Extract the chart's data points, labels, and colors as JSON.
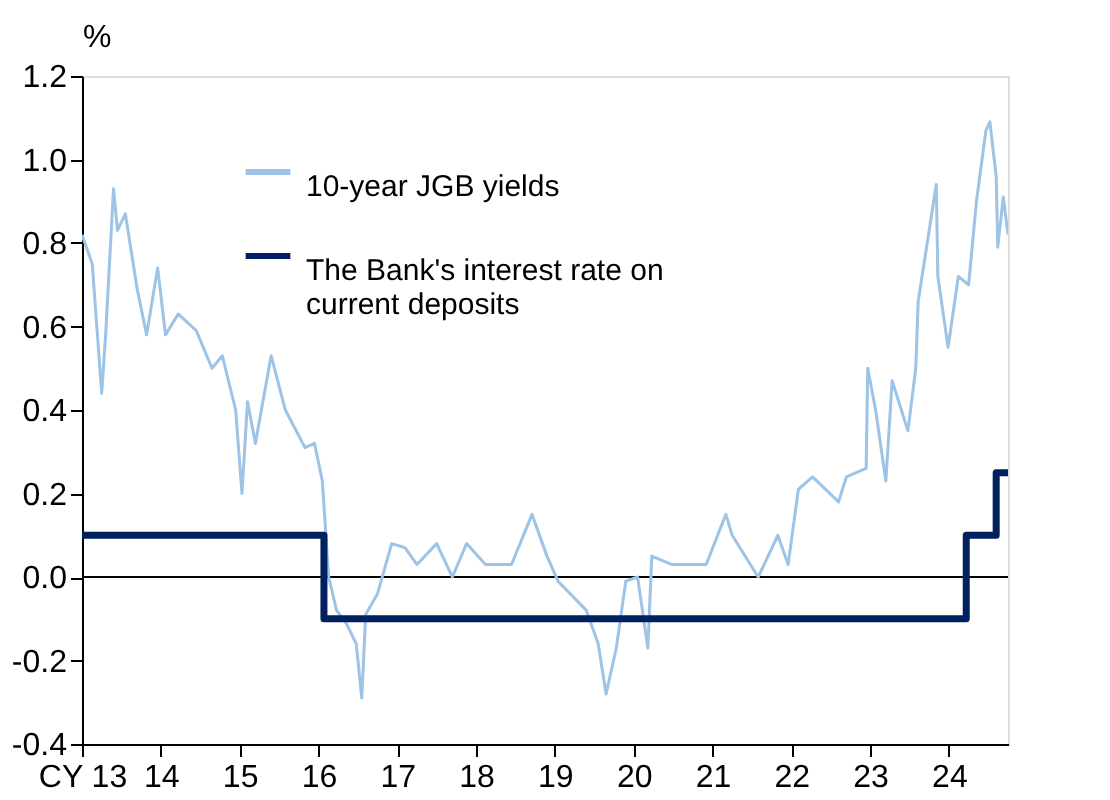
{
  "chart_data": {
    "type": "line",
    "ylabel": "%",
    "xlim": [
      2013,
      2024.75
    ],
    "ylim": [
      -0.4,
      1.2
    ],
    "xticks": [
      {
        "value": 2013,
        "label": "CY 13"
      },
      {
        "value": 2014,
        "label": "14"
      },
      {
        "value": 2015,
        "label": "15"
      },
      {
        "value": 2016,
        "label": "16"
      },
      {
        "value": 2017,
        "label": "17"
      },
      {
        "value": 2018,
        "label": "18"
      },
      {
        "value": 2019,
        "label": "19"
      },
      {
        "value": 2020,
        "label": "20"
      },
      {
        "value": 2021,
        "label": "21"
      },
      {
        "value": 2022,
        "label": "22"
      },
      {
        "value": 2023,
        "label": "23"
      },
      {
        "value": 2024,
        "label": "24"
      }
    ],
    "yticks": [
      {
        "value": -0.4,
        "label": "-0.4"
      },
      {
        "value": -0.2,
        "label": "-0.2"
      },
      {
        "value": 0,
        "label": "0.0"
      },
      {
        "value": 0.2,
        "label": "0.2"
      },
      {
        "value": 0.4,
        "label": "0.4"
      },
      {
        "value": 0.6,
        "label": "0.6"
      },
      {
        "value": 0.8,
        "label": "0.8"
      },
      {
        "value": 1.0,
        "label": "1.0"
      },
      {
        "value": 1.2,
        "label": "1.2"
      }
    ],
    "grid": false,
    "legend": "top",
    "ref_lines": [
      {
        "axis": "y",
        "value": 0,
        "color": "#000000"
      }
    ],
    "series": [
      {
        "name": "10-year JGB yields",
        "color": "#9dc3e6",
        "x": [
          2013.0,
          2013.13,
          2013.25,
          2013.3,
          2013.4,
          2013.45,
          2013.55,
          2013.7,
          2013.82,
          2013.96,
          2014.06,
          2014.22,
          2014.45,
          2014.65,
          2014.78,
          2014.95,
          2015.03,
          2015.1,
          2015.2,
          2015.4,
          2015.58,
          2015.83,
          2015.95,
          2016.05,
          2016.13,
          2016.23,
          2016.35,
          2016.48,
          2016.55,
          2016.6,
          2016.75,
          2016.93,
          2017.1,
          2017.25,
          2017.5,
          2017.7,
          2017.88,
          2018.12,
          2018.45,
          2018.71,
          2018.9,
          2019.04,
          2019.4,
          2019.55,
          2019.65,
          2019.78,
          2019.9,
          2020.05,
          2020.18,
          2020.23,
          2020.48,
          2020.92,
          2021.17,
          2021.25,
          2021.58,
          2021.83,
          2021.96,
          2022.09,
          2022.27,
          2022.6,
          2022.7,
          2022.95,
          2022.97,
          2023.07,
          2023.2,
          2023.28,
          2023.48,
          2023.58,
          2023.61,
          2023.84,
          2023.86,
          2023.99,
          2024.12,
          2024.25,
          2024.35,
          2024.47,
          2024.52,
          2024.6,
          2024.62,
          2024.69,
          2024.75
        ],
        "values": [
          0.82,
          0.75,
          0.44,
          0.58,
          0.93,
          0.83,
          0.87,
          0.69,
          0.58,
          0.74,
          0.58,
          0.63,
          0.59,
          0.5,
          0.53,
          0.4,
          0.2,
          0.42,
          0.32,
          0.53,
          0.4,
          0.31,
          0.32,
          0.23,
          0.0,
          -0.08,
          -0.11,
          -0.16,
          -0.29,
          -0.09,
          -0.04,
          0.08,
          0.07,
          0.03,
          0.08,
          0.0,
          0.08,
          0.03,
          0.03,
          0.15,
          0.05,
          -0.01,
          -0.08,
          -0.16,
          -0.28,
          -0.17,
          -0.01,
          0.0,
          -0.17,
          0.05,
          0.03,
          0.03,
          0.15,
          0.1,
          0.0,
          0.1,
          0.03,
          0.21,
          0.24,
          0.18,
          0.24,
          0.26,
          0.5,
          0.4,
          0.23,
          0.47,
          0.35,
          0.5,
          0.66,
          0.94,
          0.72,
          0.55,
          0.72,
          0.7,
          0.9,
          1.07,
          1.09,
          0.96,
          0.79,
          0.91,
          0.82
        ]
      },
      {
        "name": "The Bank's interest rate on current deposits",
        "color": "#002060",
        "type": "step",
        "x": [
          2013,
          2016.07,
          2024.22,
          2024.6,
          2024.75
        ],
        "values": [
          0.1,
          -0.1,
          0.1,
          0.25,
          0.25
        ]
      }
    ]
  }
}
